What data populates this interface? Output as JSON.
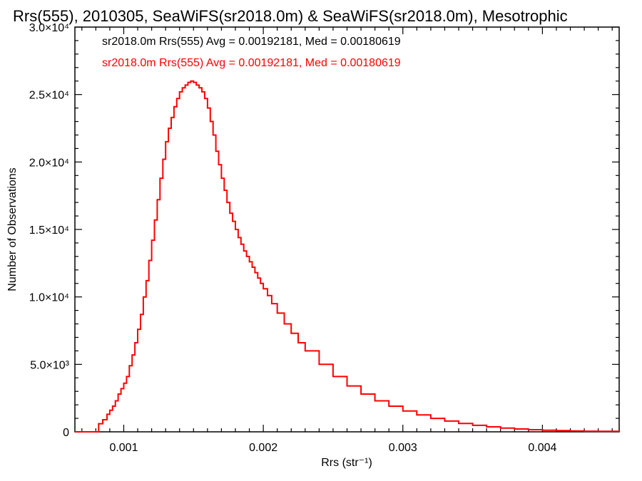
{
  "chart_data": {
    "type": "histogram",
    "title": "Rrs(555), 2010305, SeaWiFS(sr2018.0m) & SeaWiFS(sr2018.0m), Mesotrophic",
    "xlabel": "Rrs (str⁻¹)",
    "ylabel": "Number of Observations",
    "xlim": [
      0.00065,
      0.00455
    ],
    "ylim": [
      0,
      30000
    ],
    "xticks": [
      0.001,
      0.002,
      0.003,
      0.004
    ],
    "xtick_labels": [
      "0.001",
      "0.002",
      "0.003",
      "0.004"
    ],
    "yticks": [
      0,
      5000,
      10000,
      15000,
      20000,
      25000,
      30000
    ],
    "ytick_labels": [
      "0",
      "5.0×10³",
      "1.0×10⁴",
      "1.5×10⁴",
      "2.0×10⁴",
      "2.5×10⁴",
      "3.0×10⁴"
    ],
    "grid": false,
    "annotations": [
      {
        "text": "sr2018.0m Rrs(555) Avg = 0.00192181, Med = 0.00180619",
        "color": "#000000"
      },
      {
        "text": "sr2018.0m Rrs(555) Avg = 0.00192181, Med = 0.00180619",
        "color": "#ff0000"
      }
    ],
    "series": [
      {
        "color": "#ff0000",
        "x": [
          0.00065,
          0.0008,
          0.00082,
          0.00085,
          0.00088,
          0.0009,
          0.00092,
          0.00094,
          0.00096,
          0.00098,
          0.001,
          0.00102,
          0.00104,
          0.00106,
          0.00108,
          0.0011,
          0.00112,
          0.00114,
          0.00116,
          0.00118,
          0.0012,
          0.00122,
          0.00124,
          0.00126,
          0.00128,
          0.0013,
          0.00132,
          0.00134,
          0.00136,
          0.00138,
          0.0014,
          0.00142,
          0.00144,
          0.00146,
          0.00148,
          0.0015,
          0.00152,
          0.00154,
          0.00156,
          0.00158,
          0.0016,
          0.00162,
          0.00164,
          0.00166,
          0.00168,
          0.0017,
          0.00172,
          0.00174,
          0.00176,
          0.00178,
          0.0018,
          0.00182,
          0.00184,
          0.00186,
          0.00188,
          0.0019,
          0.00192,
          0.00194,
          0.00196,
          0.00198,
          0.002,
          0.00203,
          0.00206,
          0.0021,
          0.00215,
          0.0022,
          0.00225,
          0.0023,
          0.0024,
          0.0025,
          0.0026,
          0.0027,
          0.0028,
          0.0029,
          0.003,
          0.0031,
          0.0032,
          0.0033,
          0.0034,
          0.0035,
          0.0036,
          0.0037,
          0.0038,
          0.0039,
          0.004,
          0.0041,
          0.0042,
          0.0043,
          0.0044,
          0.00455
        ],
        "y": [
          0,
          0,
          600,
          900,
          1300,
          1600,
          1900,
          2300,
          2800,
          3200,
          3600,
          4100,
          4900,
          5700,
          6600,
          7600,
          8700,
          10000,
          11200,
          12700,
          14200,
          15700,
          17200,
          18800,
          20200,
          21500,
          22500,
          23300,
          24100,
          24700,
          25200,
          25500,
          25700,
          25900,
          26000,
          25900,
          25700,
          25500,
          25200,
          24700,
          24000,
          23000,
          22000,
          20800,
          19800,
          18800,
          17900,
          17000,
          16200,
          15600,
          15000,
          14400,
          13900,
          13400,
          13000,
          12600,
          12200,
          11800,
          11400,
          11000,
          10600,
          10100,
          9500,
          8800,
          8000,
          7300,
          6600,
          6000,
          5000,
          4100,
          3400,
          2800,
          2300,
          1900,
          1550,
          1250,
          1000,
          800,
          620,
          480,
          370,
          280,
          210,
          160,
          120,
          90,
          70,
          50,
          35,
          20
        ]
      }
    ]
  }
}
